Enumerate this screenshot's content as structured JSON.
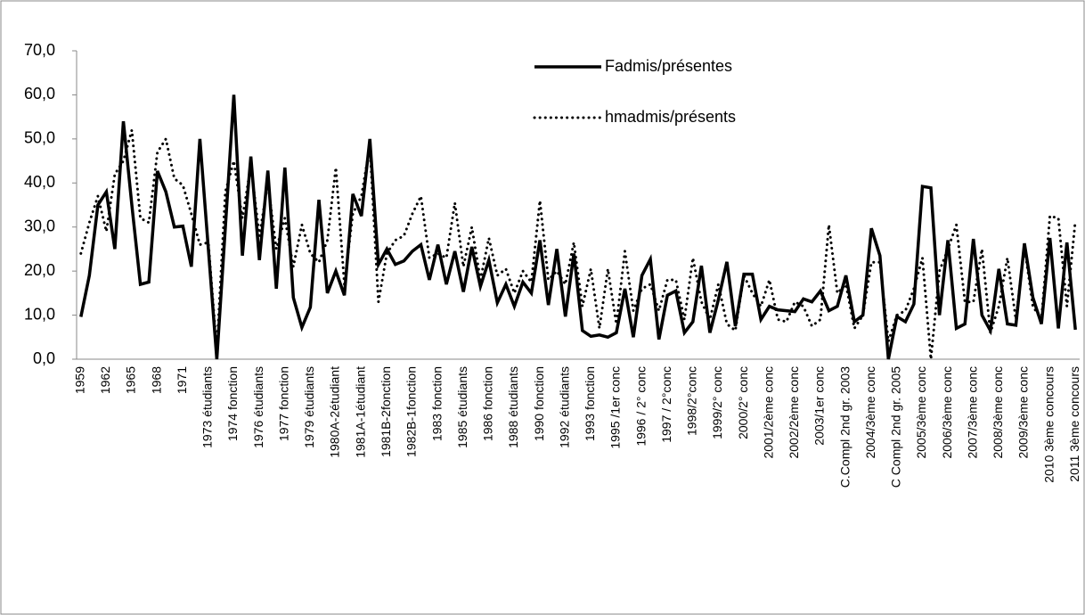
{
  "chart_data": {
    "type": "line",
    "categories": [
      "1959",
      null,
      null,
      "1962",
      null,
      null,
      "1965",
      null,
      null,
      "1968",
      null,
      null,
      "1971",
      null,
      null,
      "1973 étudiants",
      null,
      null,
      "1974 fonction",
      null,
      null,
      "1976 étudiants",
      null,
      null,
      "1977 fonction",
      null,
      null,
      "1979 étudiants",
      null,
      null,
      "1980A-2étudiant",
      null,
      null,
      "1981A-1étudiant",
      null,
      null,
      "1981B-2fonction",
      null,
      null,
      "1982B-1fonction",
      null,
      null,
      "1983 fonction",
      null,
      null,
      "1985 étudiants",
      null,
      null,
      "1986 fonction",
      null,
      null,
      "1988 étudiants",
      null,
      null,
      "1990 fonction",
      null,
      null,
      "1992 étudiants",
      null,
      null,
      "1993 fonction",
      null,
      null,
      "1995 /1er conc",
      null,
      null,
      "1996 / 2° conc",
      null,
      null,
      "1997 / 2°conc",
      null,
      null,
      "1998/2°conc",
      null,
      null,
      "1999/2° conc",
      null,
      null,
      "2000/2° conc",
      null,
      null,
      "2001/2ème conc",
      null,
      null,
      "2002/2ème conc",
      null,
      null,
      "2003/1er  conc",
      null,
      null,
      "C.Compl 2nd gr. 2003",
      null,
      null,
      "2004/3ème conc",
      null,
      null,
      "C Compl 2nd gr. 2005",
      null,
      null,
      "2005/3ème conc",
      null,
      null,
      "2006/3ème conc",
      null,
      null,
      "2007/3ème conc",
      null,
      null,
      "2008/3ème conc",
      null,
      null,
      "2009/3ème conc",
      null,
      null,
      "2010 3ème concours",
      null,
      null,
      "2011 3ème concours"
    ],
    "series": [
      {
        "name": "Fadmis/présentes",
        "color": "#000000",
        "style": "solid",
        "values": [
          9.6,
          19,
          35,
          38,
          25,
          54,
          35,
          17,
          17.5,
          42.7,
          38,
          30,
          30.2,
          21,
          50,
          25,
          0,
          30,
          60,
          23.5,
          46,
          22.5,
          42.8,
          16,
          43.5,
          14,
          7.2,
          11.8,
          36.2,
          15,
          20,
          14.5,
          37.5,
          32.5,
          50,
          21.5,
          25,
          21.5,
          22.3,
          24.5,
          26,
          18,
          26,
          17,
          24.5,
          15.3,
          25.5,
          16.5,
          22.5,
          12.8,
          17,
          12,
          17.5,
          15,
          27,
          12.3,
          25,
          9.7,
          24,
          6.5,
          5.2,
          5.5,
          5,
          6,
          16,
          5,
          19,
          22.7,
          4.5,
          14.5,
          15.5,
          6,
          8.5,
          21.2,
          6,
          13.5,
          22.1,
          7.5,
          19.3,
          19.3,
          9,
          12,
          11.2,
          11,
          10.8,
          13.7,
          13,
          15.5,
          11,
          12,
          19,
          8.5,
          10,
          29.7,
          23.5,
          0,
          9.7,
          8.5,
          12.5,
          39.2,
          38.9,
          10,
          27,
          7,
          8,
          27.3,
          10,
          6.5,
          20.5,
          8,
          7.7,
          26.3,
          14,
          8,
          27.5,
          7,
          26.5,
          6.7
        ]
      },
      {
        "name": "hmadmis/présents",
        "color": "#000000",
        "style": "dotted",
        "values": [
          24,
          31,
          37,
          29,
          42,
          45,
          52,
          32,
          31,
          47,
          50,
          41,
          39.5,
          33,
          26,
          26.5,
          2,
          38,
          45,
          32,
          44,
          28,
          40,
          25,
          32,
          21,
          30.5,
          24,
          22,
          27,
          43.5,
          17,
          33,
          37,
          48.5,
          13,
          24,
          27,
          28,
          33,
          37,
          23,
          24,
          23,
          35.5,
          21,
          30,
          18,
          27.5,
          19,
          20.5,
          15,
          20,
          17.5,
          36,
          18,
          20,
          17,
          26.5,
          12,
          20.5,
          7,
          20.5,
          8,
          24.5,
          11,
          16,
          17,
          11,
          18,
          18,
          9,
          23,
          13,
          9,
          17,
          8,
          6.5,
          19,
          15,
          12,
          18,
          9,
          8.5,
          13,
          12,
          7.5,
          9,
          30.5,
          15,
          17,
          7,
          10,
          22,
          22,
          4,
          10,
          11,
          16,
          23,
          0,
          20,
          25,
          30.5,
          13,
          13,
          25,
          6,
          12,
          23,
          9,
          25.5,
          12,
          9,
          32.5,
          32,
          12,
          31.5
        ]
      }
    ],
    "ylim": [
      0,
      70
    ],
    "yticks": [
      {
        "value": 0,
        "label": "0,0"
      },
      {
        "value": 10,
        "label": "10,0"
      },
      {
        "value": 20,
        "label": "20,0"
      },
      {
        "value": 30,
        "label": "30,0"
      },
      {
        "value": 40,
        "label": "40,0"
      },
      {
        "value": 50,
        "label": "50,0"
      },
      {
        "value": 60,
        "label": "60,0"
      },
      {
        "value": 70,
        "label": "70,0"
      }
    ],
    "grid": false
  }
}
